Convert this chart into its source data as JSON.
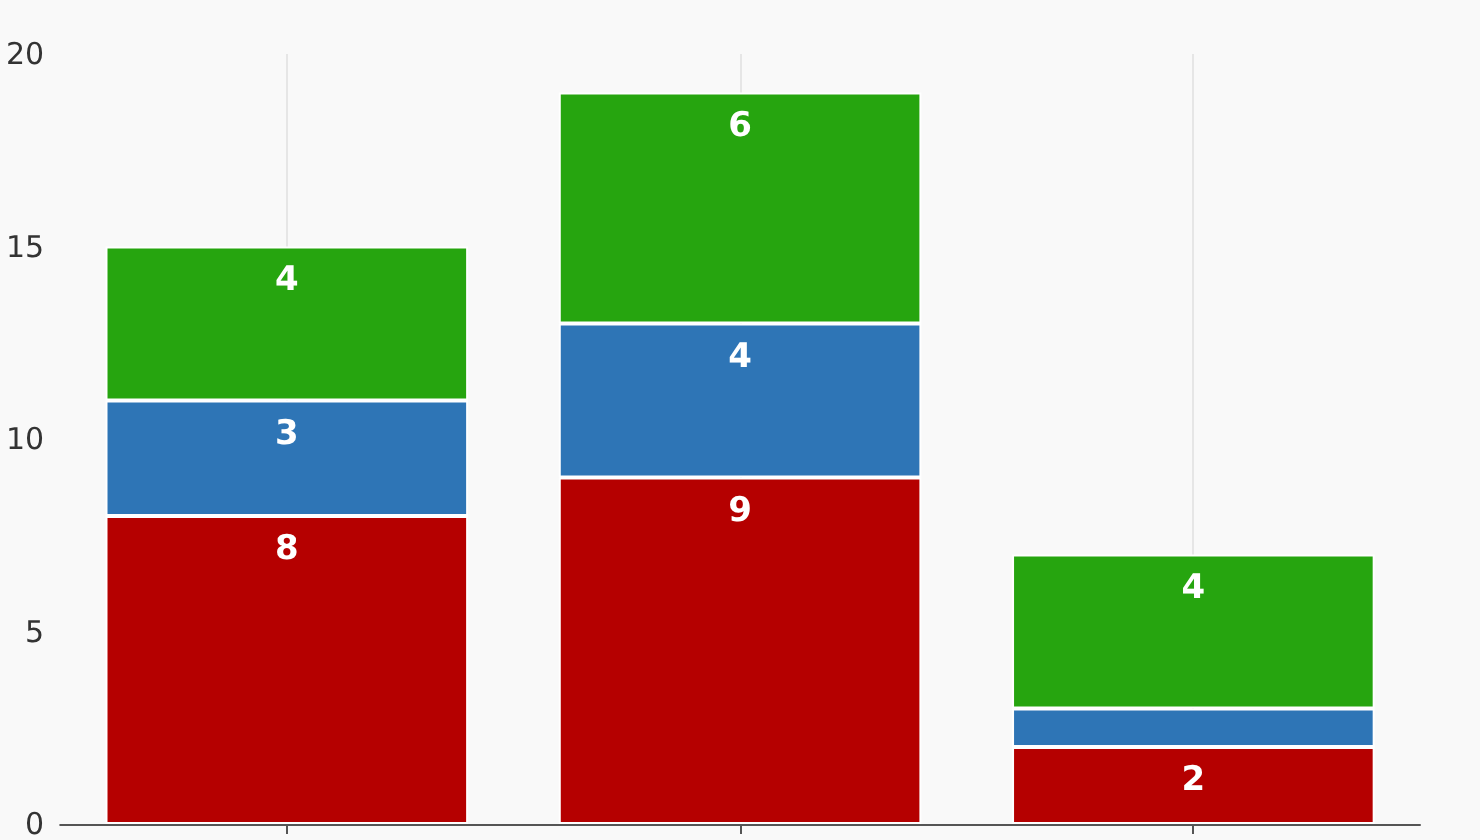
{
  "chart_data": {
    "type": "bar",
    "stacked": true,
    "categories": [
      null,
      null,
      null
    ],
    "series": [
      {
        "color": "#b50000",
        "values": [
          8,
          9,
          2
        ],
        "value_labels": [
          "8",
          "9",
          "2"
        ]
      },
      {
        "color": "#2e75b6",
        "values": [
          3,
          4,
          1
        ],
        "value_labels": [
          "3",
          "4",
          null
        ]
      },
      {
        "color": "#26a50f",
        "values": [
          4,
          6,
          4
        ],
        "value_labels": [
          "4",
          "6",
          "4"
        ]
      }
    ],
    "ylim": [
      0,
      20
    ],
    "yticks": [
      0,
      5,
      10,
      15,
      20
    ],
    "grid": "x"
  }
}
